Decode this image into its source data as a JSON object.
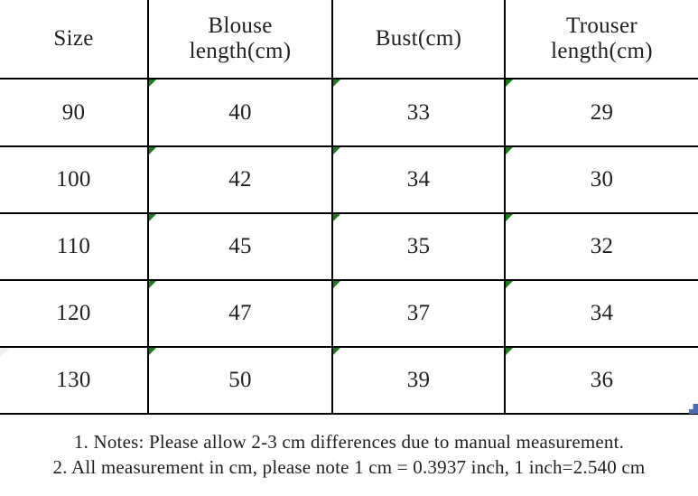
{
  "table": {
    "headers": [
      "Size",
      "Blouse\nlength(cm)",
      "Bust(cm)",
      "Trouser\nlength(cm)"
    ],
    "rows": [
      [
        "90",
        "40",
        "33",
        "29"
      ],
      [
        "100",
        "42",
        "34",
        "30"
      ],
      [
        "110",
        "45",
        "35",
        "32"
      ],
      [
        "120",
        "47",
        "37",
        "34"
      ],
      [
        "130",
        "50",
        "39",
        "36"
      ]
    ]
  },
  "notes": [
    "1. Notes: Please allow 2-3 cm differences due to manual measurement.",
    "2. All measurement in cm, please note 1 cm = 0.3937 inch, 1 inch=2.540 cm"
  ],
  "icons": {
    "cell_corner_indicator": "green-corner-triangle",
    "selection_fill_handle": "blue-square-handle"
  },
  "colors": {
    "background": "#ffffff",
    "border": "#000000",
    "text": "#1f1f1f",
    "indicator_green": "#1f7a1f",
    "faint_indicator_gray": "#f1efef",
    "selection_handle_blue": "#4f68b5"
  }
}
